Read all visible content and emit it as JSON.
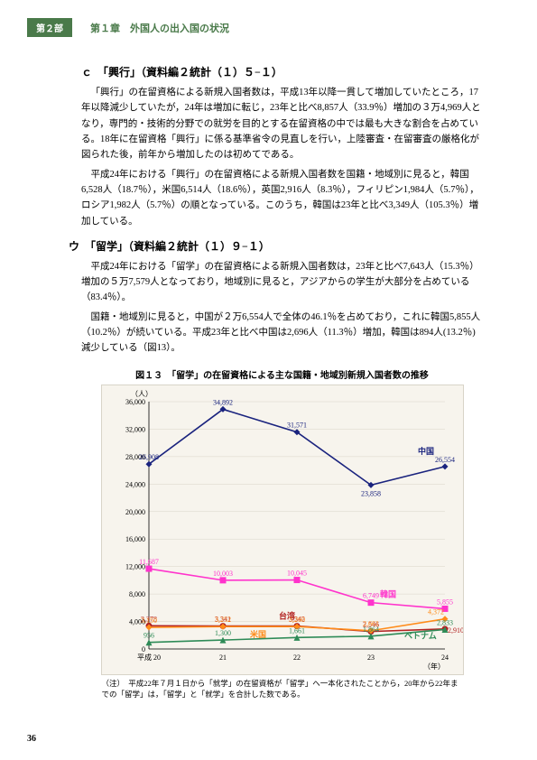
{
  "header": {
    "part": "第２部",
    "chapter": "第１章　外国人の出入国の状況"
  },
  "sectionC": {
    "title": "ｃ　「興行」（資料編２統計（１）５−１）",
    "p1": "「興行」の在留資格による新規入国者数は，平成13年以降一貫して増加していたところ，17年以降減少していたが，24年は増加に転じ，23年と比べ8,857人（33.9％）増加の３万4,969人となり，専門的・技術的分野での就労を目的とする在留資格の中では最も大きな割合を占めている。18年に在留資格「興行」に係る基準省令の見直しを行い，上陸審査・在留審査の厳格化が図られた後，前年から増加したのは初めてである。",
    "p2": "平成24年における「興行」の在留資格による新規入国者数を国籍・地域別に見ると，韓国6,528人（18.7％），米国6,514人（18.6％），英国2,916人（8.3％），フィリピン1,984人（5.7％），ロシア1,982人（5.7％）の順となっている。このうち，韓国は23年と比べ3,349人（105.3％）増加している。"
  },
  "sectionU": {
    "title": "ウ　「留学」（資料編２統計（１）９−１）",
    "p1": "平成24年における「留学」の在留資格による新規入国者数は，23年と比べ7,643人（15.3％）増加の５万7,579人となっており，地域別に見ると，アジアからの学生が大部分を占めている（83.4％）。",
    "p2": "国籍・地域別に見ると，中国が２万6,554人で全体の46.1％を占めており，これに韓国5,855人（10.2％）が続いている。平成23年と比べ中国は2,696人（11.3％）増加，韓国は894人(13.2％)減少している（図13）。"
  },
  "figure": {
    "title": "図１３　「留学」の在留資格による主な国籍・地域別新規入国者数の推移",
    "note": "（注）　平成22年７月１日から「就学」の在留資格が「留学」へ一本化されたことから，20年から22年までの「留学」は，「留学」と「就学」を合計した数である。"
  },
  "chart": {
    "type": "line",
    "background": "#f7f4ed",
    "categories": [
      "平成 20",
      "21",
      "22",
      "23",
      "24"
    ],
    "x_axis_suffix": "（年）",
    "y_unit": "（人）",
    "ylim": [
      0,
      36000
    ],
    "yticks": [
      0,
      4000,
      8000,
      12000,
      16000,
      20000,
      24000,
      28000,
      32000,
      36000
    ],
    "grid_color": "#d8d4c8",
    "series": [
      {
        "name": "中国",
        "color": "#1a237e",
        "marker": "diamond",
        "values": [
          26908,
          34892,
          31571,
          23858,
          26554
        ]
      },
      {
        "name": "韓国",
        "color": "#ff33cc",
        "marker": "square",
        "values": [
          11687,
          10003,
          10045,
          6749,
          5855
        ]
      },
      {
        "name": "台湾",
        "color": "#b22222",
        "marker": "circle",
        "values": [
          3378,
          3341,
          3342,
          2546,
          2910
        ]
      },
      {
        "name": "米国",
        "color": "#ff8c1a",
        "marker": "diamond",
        "values": [
          3150,
          3252,
          3260,
          2661,
          4372
        ]
      },
      {
        "name": "ベトナム",
        "color": "#2e8b57",
        "marker": "triangle",
        "values": [
          956,
          1300,
          1661,
          1864,
          2833
        ]
      }
    ]
  },
  "pageNumber": "36"
}
